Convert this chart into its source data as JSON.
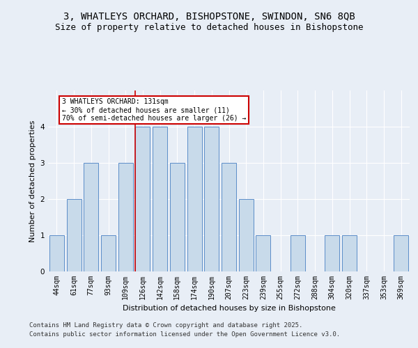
{
  "title_line1": "3, WHATLEYS ORCHARD, BISHOPSTONE, SWINDON, SN6 8QB",
  "title_line2": "Size of property relative to detached houses in Bishopstone",
  "xlabel": "Distribution of detached houses by size in Bishopstone",
  "ylabel": "Number of detached properties",
  "categories": [
    "44sqm",
    "61sqm",
    "77sqm",
    "93sqm",
    "109sqm",
    "126sqm",
    "142sqm",
    "158sqm",
    "174sqm",
    "190sqm",
    "207sqm",
    "223sqm",
    "239sqm",
    "255sqm",
    "272sqm",
    "288sqm",
    "304sqm",
    "320sqm",
    "337sqm",
    "353sqm",
    "369sqm"
  ],
  "values": [
    1,
    2,
    3,
    1,
    3,
    4,
    4,
    3,
    4,
    4,
    3,
    2,
    1,
    0,
    1,
    0,
    1,
    1,
    0,
    0,
    1
  ],
  "bar_color": "#c8daea",
  "bar_edge_color": "#5b8dc8",
  "ref_line_index": 5,
  "ref_line_color": "#cc0000",
  "annotation_title": "3 WHATLEYS ORCHARD: 131sqm",
  "annotation_line2": "← 30% of detached houses are smaller (11)",
  "annotation_line3": "70% of semi-detached houses are larger (26) →",
  "annotation_box_color": "#ffffff",
  "annotation_box_edge_color": "#cc0000",
  "ylim": [
    0,
    5
  ],
  "yticks": [
    0,
    1,
    2,
    3,
    4
  ],
  "footer_line1": "Contains HM Land Registry data © Crown copyright and database right 2025.",
  "footer_line2": "Contains public sector information licensed under the Open Government Licence v3.0.",
  "bg_color": "#e8eef6",
  "plot_bg_color": "#e8eef6",
  "title_fontsize": 10,
  "subtitle_fontsize": 9,
  "axis_label_fontsize": 8,
  "tick_fontsize": 7,
  "footer_fontsize": 6.5
}
